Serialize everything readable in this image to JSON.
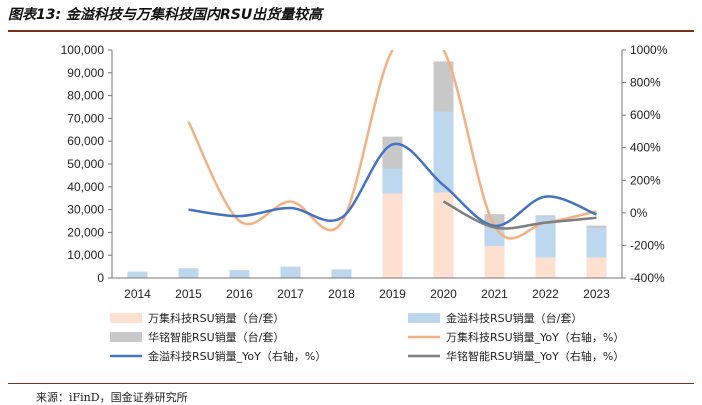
{
  "header": {
    "title": "图表13: 金溢科技与万集科技国内RSU出货量较高"
  },
  "footer": {
    "source": "来源：iFinD，国金证券研究所"
  },
  "chart_data": {
    "type": "bar",
    "categories": [
      "2014",
      "2015",
      "2016",
      "2017",
      "2018",
      "2019",
      "2020",
      "2021",
      "2022",
      "2023"
    ],
    "y_left_ticks": [
      "0",
      "10,000",
      "20,000",
      "30,000",
      "40,000",
      "50,000",
      "60,000",
      "70,000",
      "80,000",
      "90,000",
      "100,000"
    ],
    "y_right_ticks": [
      "-400%",
      "-200%",
      "0%",
      "200%",
      "400%",
      "600%",
      "800%",
      "1000%"
    ],
    "ylim": [
      0,
      100000
    ],
    "y2lim": [
      -400,
      1000
    ],
    "grid": false,
    "legend_position": "bottom",
    "series": [
      {
        "name": "万集科技RSU销量（台/套）",
        "kind": "bar",
        "axis": "left",
        "color": "#fde0d0",
        "values": [
          0,
          0,
          0,
          0,
          0,
          37000,
          37500,
          14000,
          9000,
          9000
        ]
      },
      {
        "name": "金溢科技RSU销量（台/套）",
        "kind": "bar",
        "axis": "left",
        "color": "#bdd7ee",
        "values": [
          2800,
          4300,
          3500,
          5000,
          3800,
          48000,
          73000,
          22000,
          27000,
          22000
        ]
      },
      {
        "name": "华铭智能RSU销量（台/套）",
        "kind": "bar",
        "axis": "left",
        "color": "#c8c8c8",
        "values": [
          0,
          0,
          0,
          0,
          0,
          62000,
          95000,
          28000,
          27500,
          23000
        ]
      },
      {
        "name": "万集科技RSU销量_YoY（右轴，%）",
        "kind": "line",
        "axis": "right",
        "color": "#f4b183",
        "values": [
          null,
          560,
          -50,
          70,
          -60,
          1000,
          1000,
          -80,
          -60,
          10
        ]
      },
      {
        "name": "金溢科技RSU销量_YoY（右轴，%）",
        "kind": "line",
        "axis": "right",
        "color": "#4472c4",
        "values": [
          null,
          20,
          -20,
          30,
          -30,
          420,
          170,
          -80,
          100,
          -10
        ]
      },
      {
        "name": "华铭智能RSU销量_YoY（右轴，%）",
        "kind": "line",
        "axis": "right",
        "color": "#7f7f7f",
        "values": [
          null,
          null,
          null,
          null,
          null,
          null,
          70,
          -90,
          -60,
          -30
        ]
      }
    ]
  }
}
